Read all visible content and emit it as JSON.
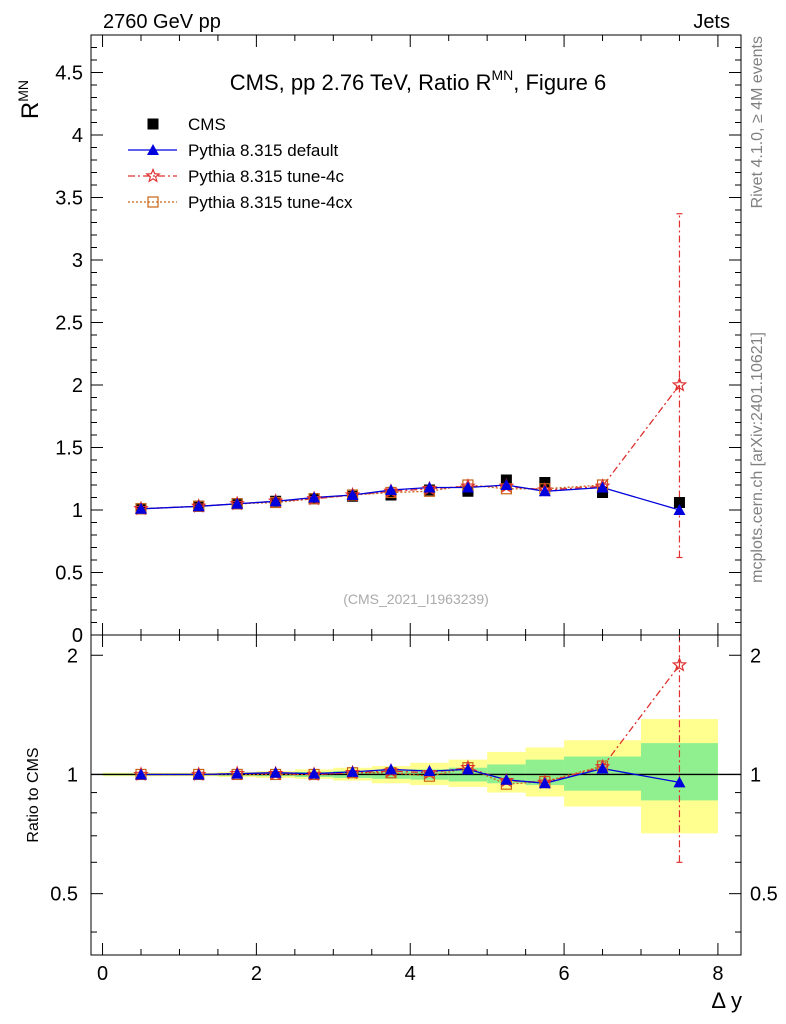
{
  "header": {
    "left": "2760 GeV pp",
    "right": "Jets",
    "side_top": "Rivet 4.1.0, ≥ 4M events",
    "side_bottom": "mcplots.cern.ch [arXiv:2401.10621]"
  },
  "chart_data": {
    "type": "scatter",
    "title": "CMS, pp 2.76 TeV, Ratio R",
    "title_sup": "MN",
    "title_suffix": ", Figure 6",
    "ylabel_main": "R",
    "ylabel_sup": "MN",
    "ylabel_ratio": "Ratio to CMS",
    "xlabel": "Δ y",
    "watermark": "(CMS_2021_I1963239)",
    "xlim": [
      -0.15,
      8.3
    ],
    "ylim_main": [
      0,
      4.8
    ],
    "ylim_ratio": [
      0.35,
      2.25
    ],
    "x_ticks": [
      "0",
      "2",
      "4",
      "6",
      "8"
    ],
    "y_ticks_main": [
      "0",
      "0.5",
      "1",
      "1.5",
      "2",
      "2.5",
      "3",
      "3.5",
      "4",
      "4.5"
    ],
    "y_ticks_ratio": [
      "0.5",
      "1",
      "2"
    ],
    "legend": [
      {
        "key": "cms",
        "label": "CMS"
      },
      {
        "key": "def",
        "label": "Pythia 8.315 default"
      },
      {
        "key": "t4c",
        "label": "Pythia 8.315 tune-4c"
      },
      {
        "key": "t4cx",
        "label": "Pythia 8.315 tune-4cx"
      }
    ],
    "colors": {
      "cms": "#000000",
      "def": "#0000dd",
      "t4c": "#e03030",
      "t4cx": "#c86414",
      "band_inner": "#90f090",
      "band_outer": "#ffff90"
    },
    "x": [
      0.5,
      1.25,
      1.75,
      2.25,
      2.75,
      3.25,
      3.75,
      4.25,
      4.75,
      5.25,
      5.75,
      6.5,
      7.5
    ],
    "bins": [
      [
        0.0,
        1.0
      ],
      [
        1.0,
        1.5
      ],
      [
        1.5,
        2.0
      ],
      [
        2.0,
        2.5
      ],
      [
        2.5,
        3.0
      ],
      [
        3.0,
        3.5
      ],
      [
        3.5,
        4.0
      ],
      [
        4.0,
        4.5
      ],
      [
        4.5,
        5.0
      ],
      [
        5.0,
        5.5
      ],
      [
        5.5,
        6.0
      ],
      [
        6.0,
        7.0
      ],
      [
        7.0,
        8.0
      ]
    ],
    "cms": [
      1.01,
      1.03,
      1.05,
      1.07,
      1.09,
      1.11,
      1.12,
      1.16,
      1.15,
      1.24,
      1.22,
      1.14,
      1.06
    ],
    "series": [
      {
        "name": "Pythia 8.315 default",
        "key": "def",
        "values": [
          1.01,
          1.03,
          1.05,
          1.07,
          1.1,
          1.12,
          1.16,
          1.18,
          1.18,
          1.2,
          1.15,
          1.18,
          1.0
        ]
      },
      {
        "name": "Pythia 8.315 tune-4c",
        "key": "t4c",
        "values": [
          1.01,
          1.03,
          1.05,
          1.07,
          1.09,
          1.12,
          1.15,
          1.17,
          1.19,
          1.19,
          1.16,
          1.19,
          2.0
        ]
      },
      {
        "name": "Pythia 8.315 tune-4cx",
        "key": "t4cx",
        "values": [
          1.01,
          1.03,
          1.05,
          1.06,
          1.09,
          1.12,
          1.14,
          1.15,
          1.2,
          1.17,
          1.17,
          1.2,
          null
        ]
      }
    ],
    "t4c_err_last": [
      0.62,
      3.37
    ],
    "ratio": {
      "def": [
        1.0,
        1.0,
        1.005,
        1.01,
        1.005,
        1.015,
        1.03,
        1.02,
        1.03,
        0.97,
        0.95,
        1.035,
        0.955
      ],
      "t4c": [
        1.0,
        1.0,
        1.005,
        1.005,
        1.0,
        1.01,
        1.02,
        1.01,
        1.04,
        0.965,
        0.955,
        1.045,
        1.89
      ],
      "t4cx": [
        1.0,
        1.0,
        1.0,
        1.0,
        1.0,
        1.01,
        1.01,
        0.99,
        1.04,
        0.945,
        0.96,
        1.05,
        null
      ],
      "t4c_err_last": [
        0.6,
        2.25
      ],
      "band_inner": [
        [
          0.995,
          1.005
        ],
        [
          0.995,
          1.005
        ],
        [
          0.993,
          1.007
        ],
        [
          0.99,
          1.01
        ],
        [
          0.985,
          1.015
        ],
        [
          0.98,
          1.02
        ],
        [
          0.975,
          1.025
        ],
        [
          0.97,
          1.03
        ],
        [
          0.96,
          1.04
        ],
        [
          0.95,
          1.06
        ],
        [
          0.94,
          1.09
        ],
        [
          0.91,
          1.11
        ],
        [
          0.86,
          1.2
        ]
      ],
      "band_outer": [
        [
          0.99,
          1.01
        ],
        [
          0.99,
          1.01
        ],
        [
          0.985,
          1.015
        ],
        [
          0.98,
          1.02
        ],
        [
          0.975,
          1.03
        ],
        [
          0.965,
          1.04
        ],
        [
          0.95,
          1.05
        ],
        [
          0.94,
          1.07
        ],
        [
          0.93,
          1.09
        ],
        [
          0.9,
          1.14
        ],
        [
          0.88,
          1.17
        ],
        [
          0.83,
          1.22
        ],
        [
          0.71,
          1.38
        ]
      ]
    }
  }
}
